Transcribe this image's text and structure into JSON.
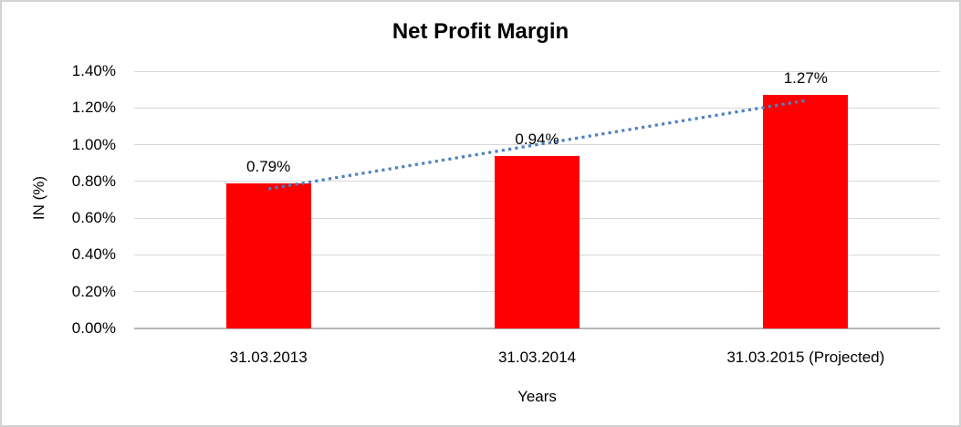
{
  "chart_data": {
    "type": "bar",
    "title": "Net Profit Margin",
    "categories": [
      "31.03.2013",
      "31.03.2014",
      "31.03.2015 (Projected)"
    ],
    "values": [
      0.79,
      0.94,
      1.27
    ],
    "data_labels": [
      "0.79%",
      "0.94%",
      "1.27%"
    ],
    "x_axis": {
      "title": "Years"
    },
    "y_axis": {
      "title": "IN (%)",
      "min": 0,
      "max": 1.4,
      "tick_step": 0.2,
      "tick_labels": [
        "0.00%",
        "0.20%",
        "0.40%",
        "0.60%",
        "0.80%",
        "1.00%",
        "1.20%",
        "1.40%"
      ]
    },
    "series_color": "#ff0000",
    "trendline": {
      "type": "linear",
      "style": "dotted",
      "color": "#4f81bd",
      "start_value": 0.76,
      "end_value": 1.24
    },
    "grid": true,
    "legend": false,
    "frame_border_color": "#d3d3d3",
    "gridline_color": "#d9d9d9",
    "axis_line_color": "#b7b7b7",
    "text_color": "#000000",
    "background_color": "#ffffff"
  }
}
